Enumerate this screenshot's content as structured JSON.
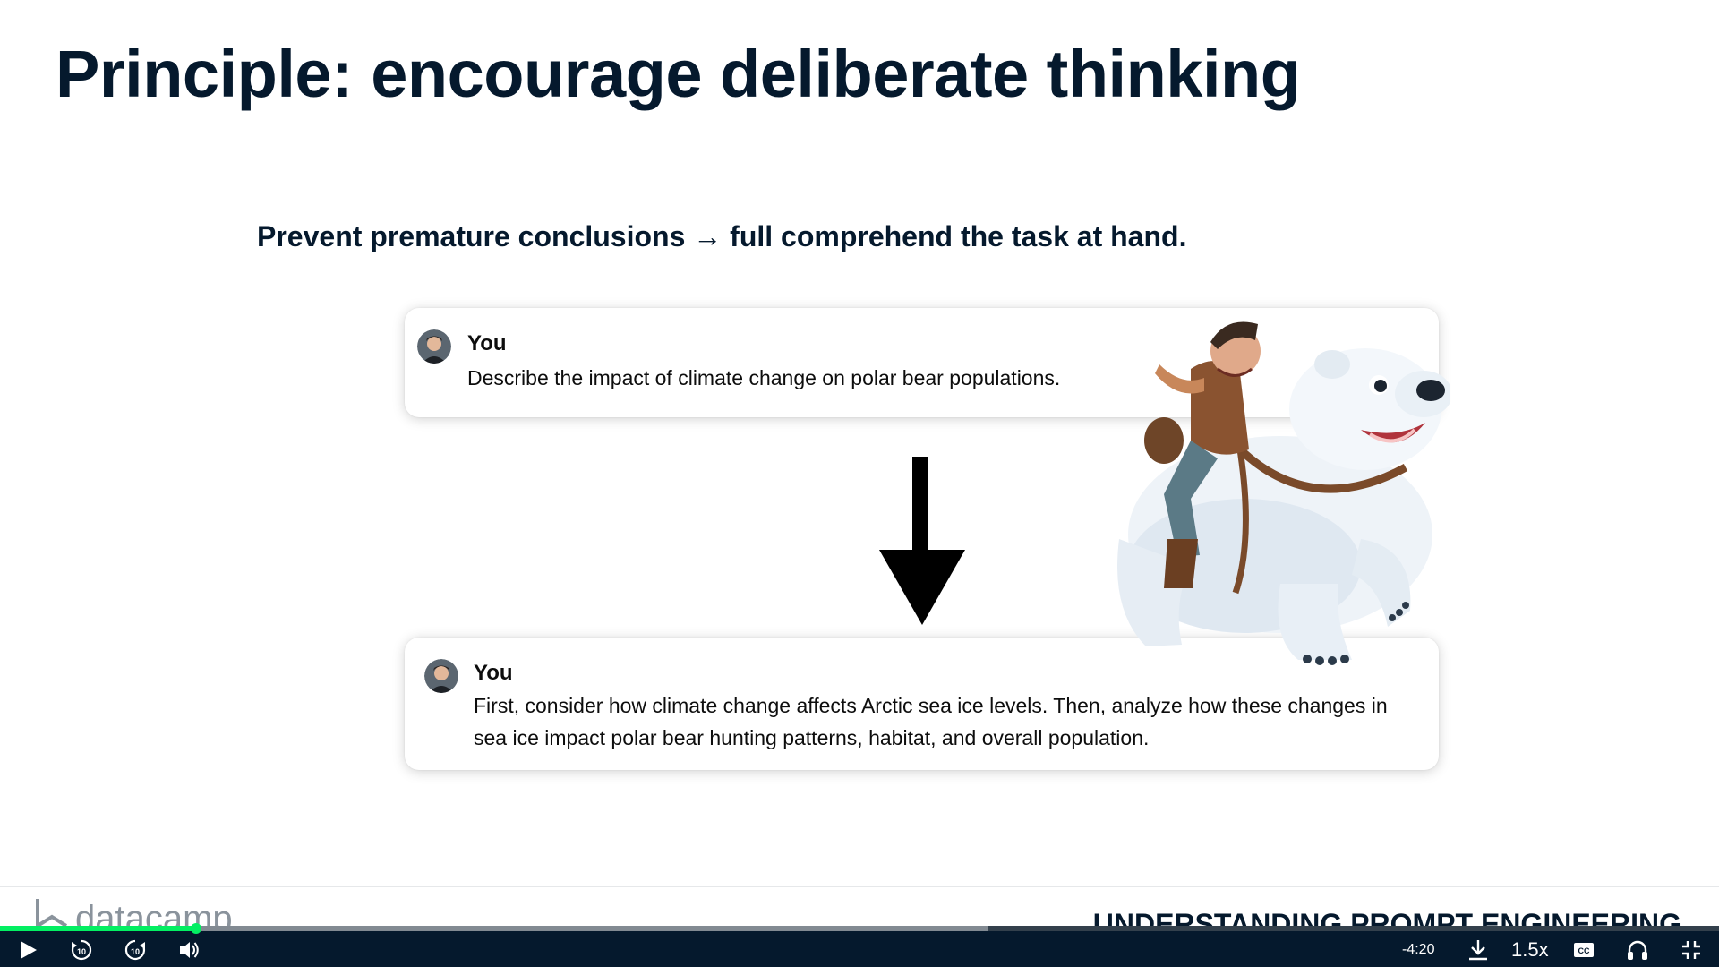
{
  "slide": {
    "title": "Principle: encourage deliberate thinking",
    "subtitle": "Prevent premature conclusions → full comprehend the task at hand."
  },
  "chat": [
    {
      "user": "You",
      "message": "Describe the impact of climate change on polar bear populations."
    },
    {
      "user": "You",
      "message": "First, consider how climate change affects Arctic sea ice levels. Then, analyze how these changes in sea ice impact polar bear hunting patterns, habitat, and overall population."
    }
  ],
  "footer": {
    "logo_text": "datacamp",
    "course_name": "UNDERSTANDING PROMPT ENGINEERING"
  },
  "player": {
    "time_remaining": "-4:20",
    "speed": "1.5x",
    "skip_back_label": "10",
    "skip_forward_label": "10",
    "progress_played": 0.114,
    "progress_buffered": 0.575,
    "accent_color": "#03ef62",
    "bar_color": "#05192d",
    "icons": [
      "play-icon",
      "rewind-10-icon",
      "forward-10-icon",
      "volume-icon",
      "download-icon",
      "captions-icon",
      "headphones-icon",
      "exit-fullscreen-icon"
    ]
  }
}
